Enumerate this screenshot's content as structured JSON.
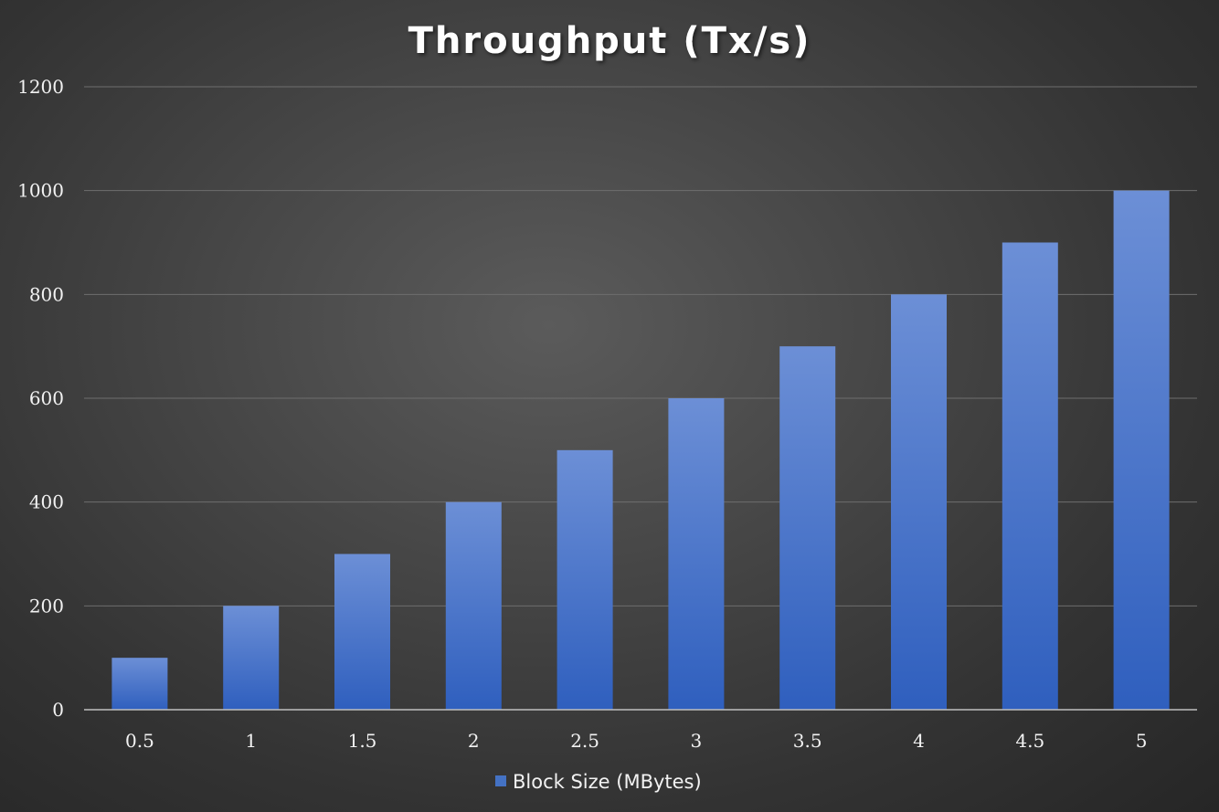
{
  "chart_data": {
    "type": "bar",
    "title": "Throughput (Tx/s)",
    "xlabel": "",
    "ylabel": "",
    "categories": [
      "0.5",
      "1",
      "1.5",
      "2",
      "2.5",
      "3",
      "3.5",
      "4",
      "4.5",
      "5"
    ],
    "series": [
      {
        "name": "Block Size (MBytes)",
        "values": [
          100,
          200,
          300,
          400,
          500,
          600,
          700,
          800,
          900,
          1000
        ],
        "color": "#4472c4"
      }
    ],
    "ylim": [
      0,
      1200
    ],
    "yticks": [
      "0",
      "200",
      "400",
      "600",
      "800",
      "1000",
      "1200"
    ],
    "grid": true,
    "legend_position": "bottom"
  }
}
